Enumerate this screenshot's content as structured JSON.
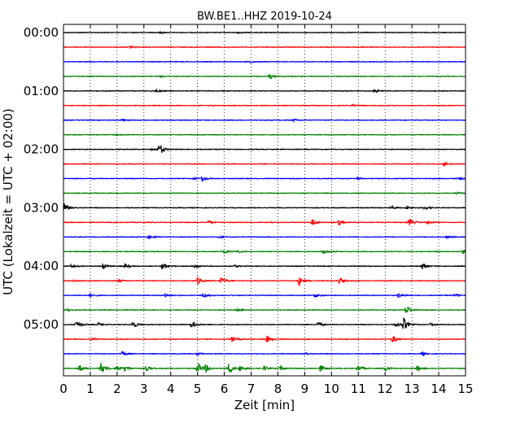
{
  "chart_data": {
    "type": "line",
    "title": "BW.BE1..HHZ 2019-10-24",
    "xlabel": "Zeit  [min]",
    "ylabel": "UTC (Lokalzeit = UTC + 02:00)",
    "xlim": [
      0,
      15
    ],
    "x_ticks": [
      "0",
      "1",
      "2",
      "3",
      "4",
      "5",
      "6",
      "7",
      "8",
      "9",
      "10",
      "11",
      "12",
      "13",
      "14",
      "15"
    ],
    "y_tick_labels": [
      "00:00",
      "01:00",
      "02:00",
      "03:00",
      "04:00",
      "05:00"
    ],
    "grid": "vertical dotted lines at each minute",
    "trace_interval_minutes": 15,
    "colors": [
      "#000000",
      "#ff0000",
      "#0000ff",
      "#008000"
    ],
    "traces": [
      {
        "start": "00:00",
        "events": [
          {
            "t": 3.6,
            "a": 0.12
          },
          {
            "t": 6.5,
            "a": 0.1
          }
        ]
      },
      {
        "start": "00:15",
        "events": [
          {
            "t": 2.5,
            "a": 0.1
          }
        ]
      },
      {
        "start": "00:30",
        "events": [
          {
            "t": 7.0,
            "a": 0.08
          }
        ]
      },
      {
        "start": "00:45",
        "events": [
          {
            "t": 3.6,
            "a": 0.12
          },
          {
            "t": 7.7,
            "a": 0.3
          }
        ]
      },
      {
        "start": "01:00",
        "events": [
          {
            "t": 3.5,
            "a": 0.15
          },
          {
            "t": 11.6,
            "a": 0.15
          }
        ]
      },
      {
        "start": "01:15",
        "events": [
          {
            "t": 10.8,
            "a": 0.12
          }
        ]
      },
      {
        "start": "01:30",
        "events": [
          {
            "t": 2.2,
            "a": 0.1
          },
          {
            "t": 8.6,
            "a": 0.15
          }
        ]
      },
      {
        "start": "01:45",
        "events": [
          {
            "t": 2.0,
            "a": 0.06
          }
        ]
      },
      {
        "start": "02:00",
        "events": [
          {
            "t": 3.3,
            "a": 0.25
          },
          {
            "t": 3.6,
            "a": 0.75
          }
        ]
      },
      {
        "start": "02:15",
        "events": [
          {
            "t": 14.2,
            "a": 0.25
          }
        ]
      },
      {
        "start": "02:30",
        "events": [
          {
            "t": 4.9,
            "a": 0.15
          },
          {
            "t": 5.2,
            "a": 0.35
          },
          {
            "t": 11.0,
            "a": 0.12
          },
          {
            "t": 14.8,
            "a": 0.15
          }
        ]
      },
      {
        "start": "02:45",
        "events": [
          {
            "t": 14.7,
            "a": 0.12
          }
        ]
      },
      {
        "start": "03:00",
        "events": [
          {
            "t": 0.05,
            "a": 0.6
          },
          {
            "t": 12.2,
            "a": 0.3
          },
          {
            "t": 12.8,
            "a": 0.25
          },
          {
            "t": 13.5,
            "a": 0.2
          }
        ]
      },
      {
        "start": "03:15",
        "events": [
          {
            "t": 5.4,
            "a": 0.25
          },
          {
            "t": 9.3,
            "a": 0.4
          },
          {
            "t": 10.3,
            "a": 0.35
          },
          {
            "t": 12.9,
            "a": 0.6
          },
          {
            "t": 13.6,
            "a": 0.2
          }
        ]
      },
      {
        "start": "03:30",
        "events": [
          {
            "t": 3.2,
            "a": 0.3
          },
          {
            "t": 5.8,
            "a": 0.15
          },
          {
            "t": 14.3,
            "a": 0.15
          }
        ]
      },
      {
        "start": "03:45",
        "events": [
          {
            "t": 6.0,
            "a": 0.35
          },
          {
            "t": 6.5,
            "a": 0.15
          },
          {
            "t": 9.7,
            "a": 0.45
          },
          {
            "t": 14.9,
            "a": 0.25
          }
        ]
      },
      {
        "start": "04:00",
        "events": [
          {
            "t": 0.3,
            "a": 0.25
          },
          {
            "t": 1.5,
            "a": 0.3
          },
          {
            "t": 2.3,
            "a": 0.25
          },
          {
            "t": 3.7,
            "a": 0.45
          },
          {
            "t": 4.9,
            "a": 0.25
          },
          {
            "t": 6.4,
            "a": 0.15
          },
          {
            "t": 13.4,
            "a": 0.4
          }
        ]
      },
      {
        "start": "04:15",
        "events": [
          {
            "t": 0.4,
            "a": 0.2
          },
          {
            "t": 2.1,
            "a": 0.15
          },
          {
            "t": 5.0,
            "a": 0.45
          },
          {
            "t": 5.9,
            "a": 0.45
          },
          {
            "t": 8.8,
            "a": 0.6
          },
          {
            "t": 10.3,
            "a": 0.45
          }
        ]
      },
      {
        "start": "04:30",
        "events": [
          {
            "t": 1.0,
            "a": 0.2
          },
          {
            "t": 3.8,
            "a": 0.3
          },
          {
            "t": 5.2,
            "a": 0.35
          },
          {
            "t": 9.4,
            "a": 0.25
          },
          {
            "t": 12.5,
            "a": 0.3
          },
          {
            "t": 14.6,
            "a": 0.2
          }
        ]
      },
      {
        "start": "04:45",
        "events": [
          {
            "t": 0.2,
            "a": 0.15
          },
          {
            "t": 6.5,
            "a": 0.2
          },
          {
            "t": 12.8,
            "a": 0.6
          }
        ]
      },
      {
        "start": "05:00",
        "events": [
          {
            "t": 0.5,
            "a": 0.6
          },
          {
            "t": 1.3,
            "a": 0.2
          },
          {
            "t": 2.6,
            "a": 0.5
          },
          {
            "t": 4.8,
            "a": 0.45
          },
          {
            "t": 9.5,
            "a": 0.35
          },
          {
            "t": 12.4,
            "a": 0.3
          },
          {
            "t": 12.7,
            "a": 0.85
          },
          {
            "t": 13.7,
            "a": 0.2
          }
        ]
      },
      {
        "start": "05:15",
        "events": [
          {
            "t": 1.0,
            "a": 0.15
          },
          {
            "t": 6.3,
            "a": 0.4
          },
          {
            "t": 7.6,
            "a": 0.45
          },
          {
            "t": 12.3,
            "a": 0.45
          }
        ]
      },
      {
        "start": "05:30",
        "events": [
          {
            "t": 2.2,
            "a": 0.25
          },
          {
            "t": 5.0,
            "a": 0.15
          },
          {
            "t": 9.0,
            "a": 0.15
          },
          {
            "t": 13.4,
            "a": 0.3
          }
        ]
      },
      {
        "start": "05:45",
        "events": [
          {
            "t": 0.6,
            "a": 0.45
          },
          {
            "t": 1.4,
            "a": 0.7
          },
          {
            "t": 2.0,
            "a": 0.35
          },
          {
            "t": 2.3,
            "a": 0.4
          },
          {
            "t": 3.1,
            "a": 0.35
          },
          {
            "t": 5.0,
            "a": 0.8
          },
          {
            "t": 5.3,
            "a": 0.45
          },
          {
            "t": 6.2,
            "a": 0.8
          },
          {
            "t": 6.6,
            "a": 0.4
          },
          {
            "t": 7.5,
            "a": 0.35
          },
          {
            "t": 8.1,
            "a": 0.3
          },
          {
            "t": 9.6,
            "a": 0.35
          },
          {
            "t": 11.0,
            "a": 0.35
          },
          {
            "t": 12.0,
            "a": 0.3
          },
          {
            "t": 13.2,
            "a": 0.35
          }
        ]
      }
    ]
  }
}
